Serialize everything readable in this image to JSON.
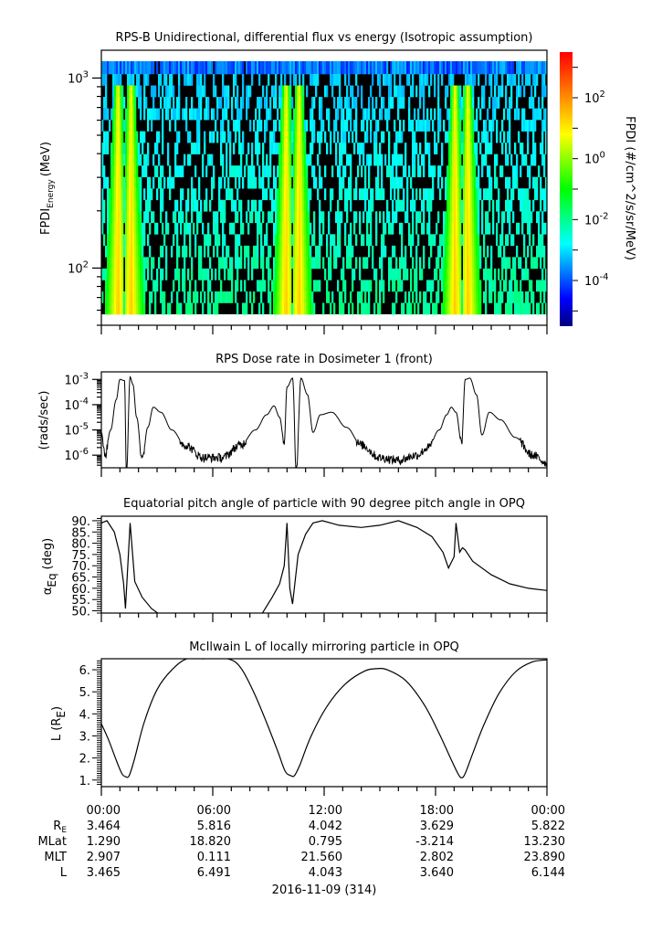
{
  "chart_data": [
    {
      "type": "heatmap",
      "title": "RPS-B  Unidirectional, differential flux vs energy (Isotropic assumption)",
      "ylabel_main": "FPDI",
      "ylabel_sub": "Energy",
      "ylabel_unit": "(MeV)",
      "yscale": "log",
      "ylim": [
        50,
        1400
      ],
      "y_tick_labels": [
        {
          "value": 100,
          "base": "10",
          "exp": "2"
        },
        {
          "value": 1000,
          "base": "10",
          "exp": "3"
        }
      ],
      "x_range_hours": [
        0,
        24
      ],
      "energy_channels": 22,
      "peaks_hours": [
        1.25,
        10.3,
        19.4
      ],
      "peak_split_hours": 0.35,
      "colorbar": {
        "label": "FPDI (#/cm^2/s/sr/MeV)",
        "scale": "log",
        "range_log10": [
          -5.5,
          3.5
        ],
        "tick_labels": [
          {
            "value": 2,
            "base": "10",
            "exp": "2"
          },
          {
            "value": 0,
            "base": "10",
            "exp": "0"
          },
          {
            "value": -2,
            "base": "10",
            "exp": "-2"
          },
          {
            "value": -4,
            "base": "10",
            "exp": "-4"
          }
        ],
        "colors": [
          "#00007f",
          "#0000ff",
          "#007fff",
          "#00ffff",
          "#00ff7f",
          "#00ff00",
          "#7fff00",
          "#ffff00",
          "#ffaa00",
          "#ff5500",
          "#ff0000"
        ]
      }
    },
    {
      "type": "line",
      "title": "RPS  Dose rate in Dosimeter 1 (front)",
      "ylabel": "(rads/sec)",
      "yscale": "log",
      "ylim_log10": [
        -6.5,
        -2.7
      ],
      "y_tick_labels": [
        {
          "value": -3,
          "base": "10",
          "exp": "-3"
        },
        {
          "value": -4,
          "base": "10",
          "exp": "-4"
        },
        {
          "value": -5,
          "base": "10",
          "exp": "-5"
        },
        {
          "value": -6,
          "base": "10",
          "exp": "-6"
        }
      ],
      "x_hours": [
        0,
        0.2,
        0.5,
        0.8,
        1.0,
        1.25,
        1.35,
        1.55,
        1.7,
        1.9,
        2.2,
        2.5,
        2.8,
        3.2,
        3.8,
        4.5,
        5.5,
        6.5,
        7.5,
        8.3,
        8.9,
        9.3,
        9.6,
        9.85,
        10.0,
        10.3,
        10.5,
        10.75,
        11.1,
        11.4,
        11.8,
        12.4,
        13.2,
        14.0,
        15.0,
        16.0,
        17.0,
        17.6,
        18.2,
        18.6,
        18.85,
        19.1,
        19.4,
        19.6,
        19.85,
        20.2,
        20.5,
        20.9,
        21.5,
        22.3,
        23.2,
        24.0
      ],
      "y_log10": [
        -5.1,
        -6.0,
        -5.0,
        -3.8,
        -3.0,
        -3.05,
        -6.6,
        -2.9,
        -3.2,
        -4.5,
        -6.2,
        -4.9,
        -4.1,
        -4.3,
        -5.0,
        -5.6,
        -6.1,
        -6.1,
        -5.6,
        -5.0,
        -4.4,
        -4.05,
        -4.5,
        -5.5,
        -3.3,
        -2.95,
        -6.6,
        -2.95,
        -3.6,
        -5.1,
        -4.4,
        -4.3,
        -4.9,
        -5.6,
        -6.1,
        -6.2,
        -6.0,
        -5.7,
        -5.0,
        -4.4,
        -4.1,
        -4.3,
        -5.5,
        -3.0,
        -2.95,
        -3.6,
        -5.2,
        -4.3,
        -4.6,
        -5.3,
        -6.0,
        -6.3
      ]
    },
    {
      "type": "line",
      "title": "Equatorial pitch angle of particle with 90 degree pitch angle in OPQ",
      "ylabel_main": "α",
      "ylabel_sub": "Eq",
      "ylabel_unit": "(deg)",
      "ylim": [
        49,
        92
      ],
      "y_tick_labels": [
        "90.",
        "85.",
        "80.",
        "75.",
        "70.",
        "65.",
        "60.",
        "55.",
        "50."
      ],
      "y_tick_values": [
        90,
        85,
        80,
        75,
        70,
        65,
        60,
        55,
        50
      ],
      "x_hours": [
        0,
        0.3,
        0.7,
        1.0,
        1.2,
        1.3,
        1.55,
        1.8,
        2.2,
        2.7,
        3.2,
        8.6,
        9.2,
        9.6,
        9.85,
        10.0,
        10.15,
        10.3,
        10.6,
        11.0,
        11.4,
        11.9,
        12.8,
        14.0,
        15.0,
        16.0,
        17.0,
        17.8,
        18.4,
        18.7,
        19.0,
        19.1,
        19.3,
        19.45,
        19.6,
        20.0,
        21.0,
        22.0,
        23.0,
        24.0
      ],
      "y": [
        89,
        90,
        85,
        75,
        62,
        51,
        89,
        63,
        56,
        51,
        48,
        48,
        56,
        62,
        70,
        89,
        60,
        53,
        75,
        84,
        89,
        90,
        88,
        87,
        88,
        90,
        87,
        83,
        76,
        69,
        74,
        89,
        76,
        78,
        77,
        72,
        66,
        62,
        60,
        59
      ]
    },
    {
      "type": "line",
      "title": "McIlwain L of locally mirroring particle in OPQ",
      "ylabel_main": "L (R",
      "ylabel_sub": "E",
      "ylabel_unit": ")",
      "ylim": [
        0.7,
        6.5
      ],
      "y_tick_labels": [
        "6.",
        "5.",
        "4.",
        "3.",
        "2.",
        "1."
      ],
      "y_tick_values": [
        6,
        5,
        4,
        3,
        2,
        1
      ],
      "x_hours": [
        0,
        0.4,
        0.8,
        1.1,
        1.3,
        1.5,
        1.8,
        2.3,
        3.0,
        3.8,
        4.6,
        5.5,
        6.8,
        7.5,
        8.2,
        8.9,
        9.5,
        9.9,
        10.2,
        10.4,
        10.7,
        11.3,
        12.2,
        13.2,
        14.2,
        14.8,
        15.4,
        16.4,
        17.4,
        18.2,
        18.8,
        19.2,
        19.4,
        19.6,
        20.0,
        20.6,
        21.4,
        22.3,
        23.2,
        24.0
      ],
      "y": [
        3.55,
        2.8,
        1.9,
        1.3,
        1.15,
        1.2,
        2.0,
        3.6,
        5.1,
        6.0,
        6.5,
        6.5,
        6.5,
        6.1,
        5.0,
        3.6,
        2.3,
        1.4,
        1.2,
        1.2,
        1.7,
        3.0,
        4.4,
        5.4,
        5.95,
        6.05,
        6.0,
        5.5,
        4.4,
        3.1,
        2.0,
        1.3,
        1.1,
        1.3,
        2.2,
        3.5,
        4.9,
        5.9,
        6.35,
        6.45
      ]
    }
  ],
  "x_axis": {
    "tick_labels": [
      "00:00",
      "06:00",
      "12:00",
      "18:00",
      "00:00"
    ],
    "tick_hours": [
      0,
      6,
      12,
      18,
      24
    ],
    "minor_per_major": 6,
    "date_label": "2016-11-09 (314)"
  },
  "ephemeris": {
    "rows": [
      {
        "label": "R",
        "label_sub": "E",
        "values": [
          "3.464",
          "5.816",
          "4.042",
          "3.629",
          "5.822"
        ]
      },
      {
        "label": "MLat",
        "label_sub": "",
        "values": [
          "1.290",
          "18.820",
          "0.795",
          "-3.214",
          "13.230"
        ]
      },
      {
        "label": "MLT",
        "label_sub": "",
        "values": [
          "2.907",
          "0.111",
          "21.560",
          "2.802",
          "23.890"
        ]
      },
      {
        "label": "L",
        "label_sub": "",
        "values": [
          "3.465",
          "6.491",
          "4.043",
          "3.640",
          "6.144"
        ]
      }
    ]
  }
}
